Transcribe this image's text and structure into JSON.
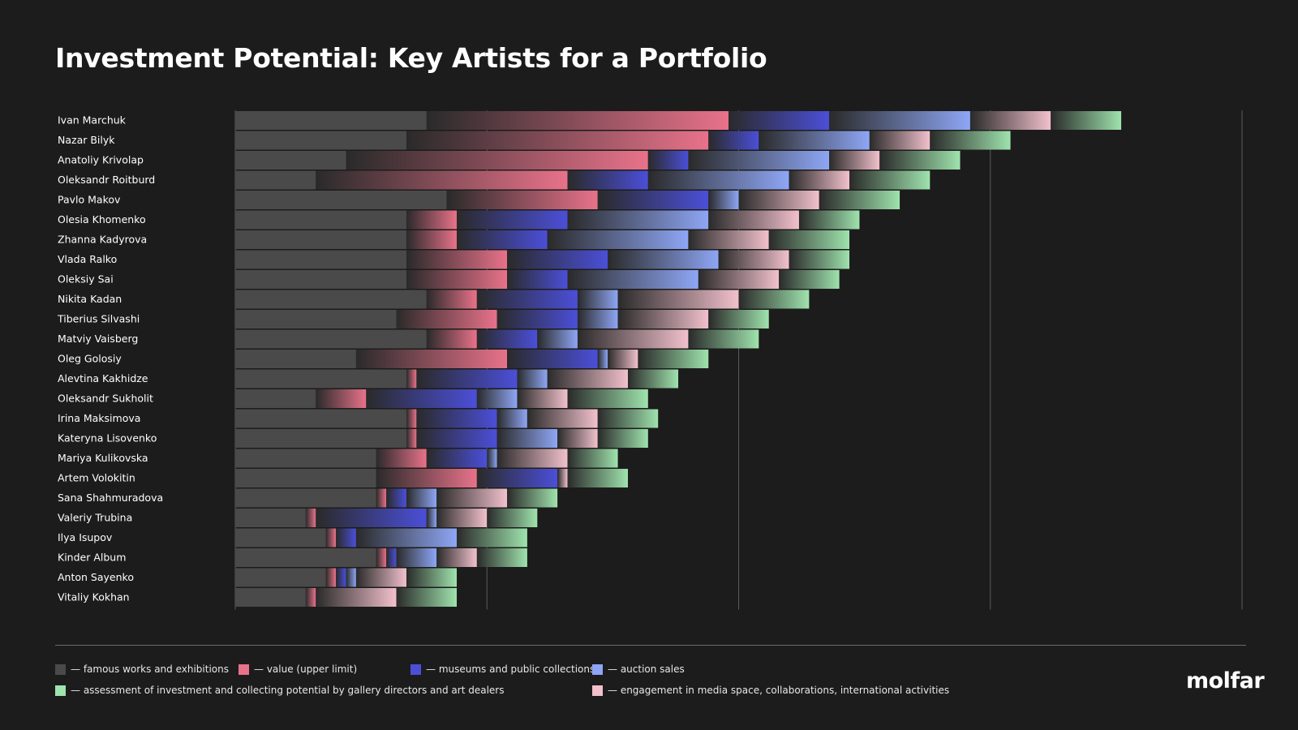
{
  "title": "Investment Potential: Key Artists for a Portfolio",
  "logo": "molfar",
  "chart_data": {
    "type": "bar",
    "orientation": "horizontal",
    "stacked": true,
    "grid": true,
    "xlim": [
      0,
      100
    ],
    "categories": [
      "Ivan Marchuk",
      "Nazar Bilyk",
      "Anatoliy Krivolap",
      "Oleksandr Roitburd",
      "Pavlo Makov",
      "Olesia Khomenko",
      "Zhanna Kadyrova",
      "Vlada Ralko",
      "Oleksiy Sai",
      "Nikita Kadan",
      "Tiberius Silvashi",
      "Matviy Vaisberg",
      "Oleg Golosiy",
      "Alevtina Kakhidze",
      "Oleksandr Sukholit",
      "Irina Maksimova",
      "Kateryna Lisovenko",
      "Mariya Kulikovska",
      "Artem Volokitin",
      "Sana Shahmuradova",
      "Valeriy Trubina",
      "Ilya Isupov",
      "Kinder Album",
      "Anton Sayenko",
      "Vitaliy Kokhan"
    ],
    "series": [
      {
        "name": "— famous works and exhibitions",
        "color": "#4a4a4a",
        "values": [
          19,
          17,
          11,
          8,
          21,
          17,
          17,
          17,
          17,
          19,
          16,
          19,
          12,
          17,
          8,
          17,
          17,
          14,
          14,
          14,
          7,
          9,
          14,
          9,
          7
        ]
      },
      {
        "name": "— value (upper limit)",
        "color": "#e8728a",
        "values": [
          30,
          30,
          30,
          25,
          15,
          5,
          5,
          10,
          10,
          5,
          10,
          5,
          15,
          1,
          5,
          1,
          1,
          5,
          10,
          1,
          1,
          1,
          1,
          1,
          1
        ]
      },
      {
        "name": "— museums and public collections",
        "color": "#4b4fd8",
        "values": [
          10,
          5,
          4,
          8,
          11,
          11,
          9,
          10,
          6,
          10,
          8,
          6,
          9,
          10,
          11,
          8,
          8,
          6,
          8,
          2,
          11,
          2,
          1,
          1,
          0
        ]
      },
      {
        "name": "— auction sales",
        "color": "#8ea6f5",
        "values": [
          14,
          11,
          14,
          14,
          3,
          14,
          14,
          11,
          13,
          4,
          4,
          4,
          1,
          3,
          4,
          3,
          6,
          1,
          0,
          3,
          1,
          10,
          4,
          1,
          0
        ]
      },
      {
        "name": "— engagement in media space, collaborations, international activities",
        "color": "#f2c1cc",
        "values": [
          8,
          6,
          5,
          6,
          8,
          9,
          8,
          7,
          8,
          12,
          9,
          11,
          3,
          8,
          5,
          7,
          4,
          7,
          1,
          7,
          5,
          0,
          4,
          5,
          8
        ]
      },
      {
        "name": "— assessment of investment and collecting potential by gallery directors and art dealers",
        "color": "#9fe3ad",
        "values": [
          7,
          8,
          8,
          8,
          8,
          6,
          8,
          6,
          6,
          7,
          6,
          7,
          7,
          5,
          8,
          6,
          5,
          5,
          6,
          5,
          5,
          7,
          5,
          5,
          6
        ]
      }
    ]
  }
}
